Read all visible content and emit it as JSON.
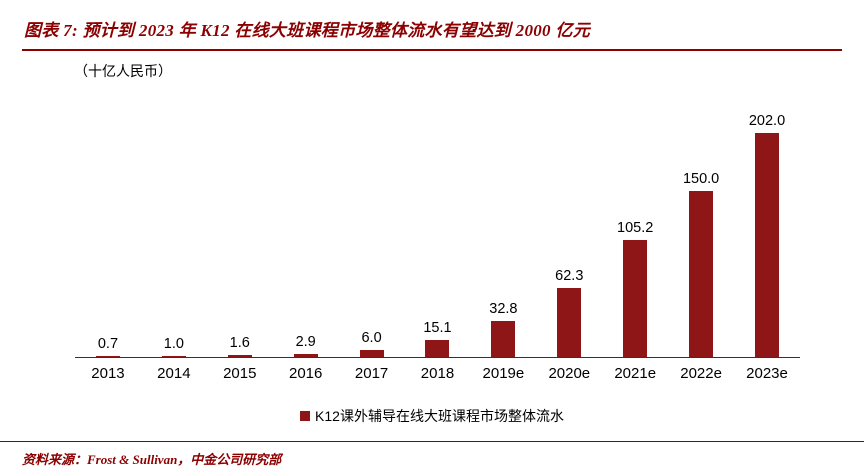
{
  "header": {
    "title": "图表 7:  预计到 2023 年 K12 在线大班课程市场整体流水有望达到 2000 亿元"
  },
  "unit_label": "（十亿人民币）",
  "legend": {
    "label": "K12课外辅导在线大班课程市场整体流水"
  },
  "footer": {
    "source": "资料来源：Frost & Sullivan，中金公司研究部"
  },
  "colors": {
    "accent": "#8B0000",
    "bar": "#8E1617"
  },
  "chart_data": {
    "type": "bar",
    "categories": [
      "2013",
      "2014",
      "2015",
      "2016",
      "2017",
      "2018",
      "2019e",
      "2020e",
      "2021e",
      "2022e",
      "2023e"
    ],
    "values": [
      0.7,
      1.0,
      1.6,
      2.9,
      6.0,
      15.1,
      32.8,
      62.3,
      105.2,
      150.0,
      202.0
    ],
    "title": "预计到2023年K12在线大班课程市场整体流水有望达到2000亿元",
    "xlabel": "",
    "ylabel": "十亿人民币",
    "ylim": [
      0,
      220
    ],
    "grid": false,
    "legend_position": "bottom",
    "series_name": "K12课外辅导在线大班课程市场整体流水"
  }
}
